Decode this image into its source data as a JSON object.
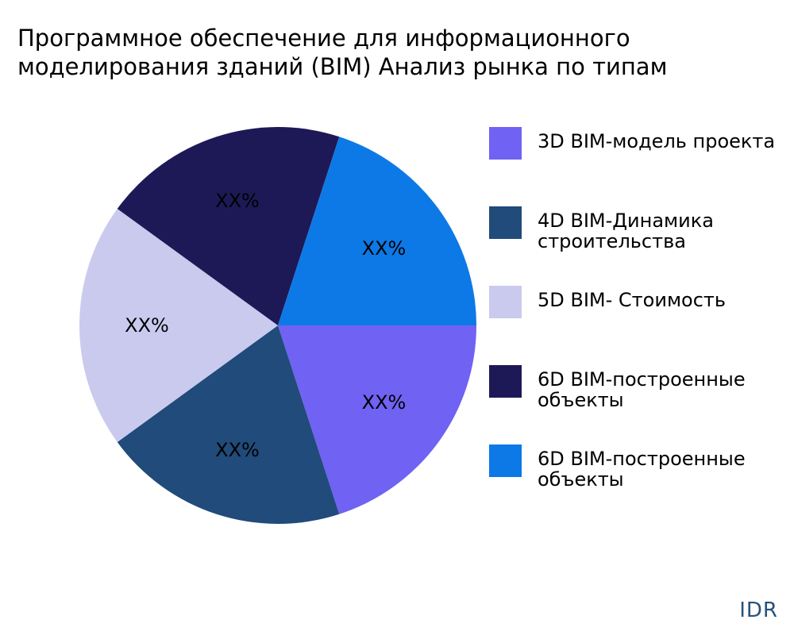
{
  "title": {
    "line1": "Программное обеспечение для информационного",
    "line2": "моделирования зданий (BIM) Анализ рынка по типам"
  },
  "chart_data": {
    "type": "pie",
    "title": "Программное обеспечение для информационного моделирования зданий (BIM) Анализ рынка по типам",
    "start_angle_deg": 0,
    "direction": "clockwise",
    "slices": [
      {
        "label": "3D BIM-модель проекта",
        "value": 20,
        "display": "XX%",
        "color": "#7062f2"
      },
      {
        "label": "4D BIM-Динамика строительства",
        "value": 20,
        "display": "XX%",
        "color": "#204b7a"
      },
      {
        "label": "5D BIM- Стоимость",
        "value": 20,
        "display": "XX%",
        "color": "#cacaef"
      },
      {
        "label": "6D BIM-построенные объекты",
        "value": 20,
        "display": "XX%",
        "color": "#1d1957"
      },
      {
        "label": "6D BIM-построенные объекты",
        "value": 20,
        "display": "XX%",
        "color": "#0d79e6"
      }
    ]
  },
  "legend": [
    {
      "lines": [
        "3D BIM-модель проекта"
      ],
      "color": "#7062f2"
    },
    {
      "lines": [
        "4D BIM-Динамика",
        "строительства"
      ],
      "color": "#204b7a"
    },
    {
      "lines": [
        "5D BIM- Стоимость"
      ],
      "color": "#cacaef"
    },
    {
      "lines": [
        "6D BIM-построенные",
        "объекты"
      ],
      "color": "#1d1957"
    },
    {
      "lines": [
        "6D BIM-построенные",
        "объекты"
      ],
      "color": "#0d79e6"
    }
  ],
  "brand": "IDR"
}
